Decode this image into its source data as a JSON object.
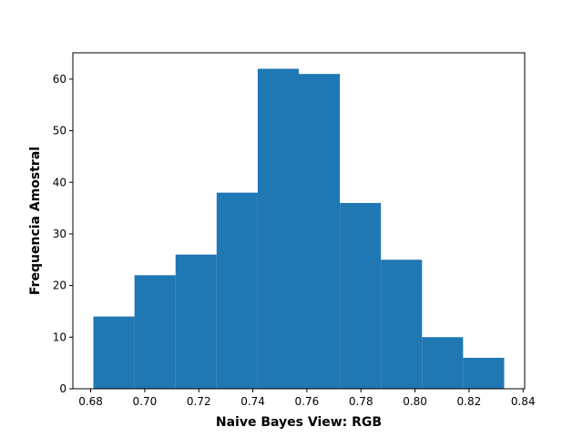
{
  "chart_data": {
    "type": "bar",
    "title": "",
    "xlabel": "Naive Bayes View: RGB",
    "ylabel": "Frequencia Amostral",
    "bin_edges": [
      0.681,
      0.6962,
      0.7114,
      0.7266,
      0.7418,
      0.757,
      0.7722,
      0.7874,
      0.8026,
      0.8178,
      0.833
    ],
    "values": [
      14,
      22,
      26,
      38,
      62,
      61,
      36,
      25,
      10,
      6
    ],
    "xlim": [
      0.6734,
      0.8406
    ],
    "ylim": [
      0,
      65.1
    ],
    "xticks": [
      0.68,
      0.7,
      0.72,
      0.74,
      0.76,
      0.78,
      0.8,
      0.82,
      0.84
    ],
    "xtick_labels": [
      "0.68",
      "0.70",
      "0.72",
      "0.74",
      "0.76",
      "0.78",
      "0.80",
      "0.82",
      "0.84"
    ],
    "yticks": [
      0,
      10,
      20,
      30,
      40,
      50,
      60
    ],
    "ytick_labels": [
      "0",
      "10",
      "20",
      "30",
      "40",
      "50",
      "60"
    ],
    "grid": false,
    "legend": "none",
    "bar_color": "#1f77b4"
  }
}
